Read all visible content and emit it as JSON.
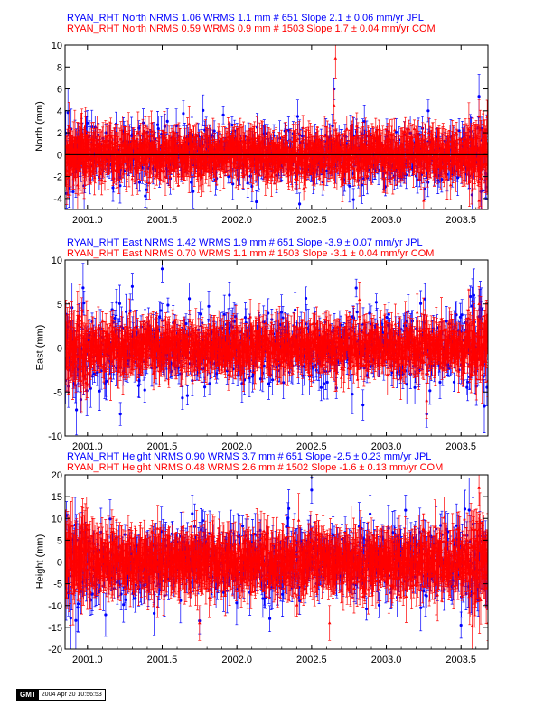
{
  "chart_data": [
    {
      "type": "scatter",
      "title_lines": [
        {
          "text": "RYAN_RHT North NRMS 1.06 WRMS  1.1 mm # 651 Slope    2.1 ±  0.06 mm/yr JPL",
          "color": "#0000ff"
        },
        {
          "text": "RYAN_RHT North NRMS 0.59 WRMS  0.9 mm # 1503 Slope    1.7 ±  0.04 mm/yr COM",
          "color": "#ff0000"
        }
      ],
      "ylabel": "North (mm)",
      "xlim": [
        2000.85,
        2003.68
      ],
      "ylim": [
        -5,
        10
      ],
      "xticks": [
        2001.0,
        2001.5,
        2002.0,
        2002.5,
        2003.0,
        2003.5
      ],
      "xtick_labels": [
        "2001.0",
        "2001.5",
        "2002.0",
        "2002.5",
        "2003.0",
        "2003.5"
      ],
      "yticks": [
        -4,
        -2,
        0,
        2,
        4,
        6,
        8,
        10
      ],
      "ytick_labels": [
        "-4",
        "-2",
        "0",
        "2",
        "4",
        "6",
        "8",
        "10"
      ],
      "zero_line": true,
      "series": [
        {
          "name": "JPL",
          "color": "#0000ff",
          "marker": "circle",
          "n": 651,
          "spread": 1.3,
          "err": 1.2,
          "x_range": [
            2000.85,
            2003.68
          ],
          "outliers": [
            [
              2002.65,
              6.0,
              1.0
            ],
            [
              2002.42,
              -4.5,
              1.0
            ],
            [
              2003.28,
              4.0,
              1.0
            ],
            [
              2002.13,
              -4.3,
              1.0
            ],
            [
              2002.78,
              -4.1,
              1.0
            ]
          ]
        },
        {
          "name": "COM",
          "color": "#ff0000",
          "marker": "triangle",
          "n": 1503,
          "spread": 0.9,
          "err": 1.4,
          "x_range": [
            2000.85,
            2003.68
          ],
          "outliers": [
            [
              2002.66,
              8.8,
              1.8
            ],
            [
              2002.65,
              4.5,
              1.6
            ],
            [
              2003.25,
              -4.2,
              1.2
            ],
            [
              2003.62,
              3.5,
              1.5
            ],
            [
              2003.62,
              -4.2,
              1.5
            ]
          ]
        }
      ]
    },
    {
      "type": "scatter",
      "title_lines": [
        {
          "text": "RYAN_RHT East NRMS 1.42 WRMS  1.9 mm # 651 Slope   -3.9 ±  0.07 mm/yr JPL",
          "color": "#0000ff"
        },
        {
          "text": "RYAN_RHT East NRMS 0.70 WRMS  1.1 mm # 1503 Slope   -3.1 ±  0.04 mm/yr COM",
          "color": "#ff0000"
        }
      ],
      "ylabel": "East (mm)",
      "xlim": [
        2000.85,
        2003.68
      ],
      "ylim": [
        -10,
        10
      ],
      "xticks": [
        2001.0,
        2001.5,
        2002.0,
        2002.5,
        2003.0,
        2003.5
      ],
      "xtick_labels": [
        "2001.0",
        "2001.5",
        "2002.0",
        "2002.5",
        "2003.0",
        "2003.5"
      ],
      "yticks": [
        -10,
        -5,
        0,
        5,
        10
      ],
      "ytick_labels": [
        "-10",
        "-5",
        "0",
        "5",
        "10"
      ],
      "zero_line": true,
      "series": [
        {
          "name": "JPL",
          "color": "#0000ff",
          "marker": "circle",
          "n": 651,
          "spread": 2.2,
          "err": 1.6,
          "x_range": [
            2000.85,
            2003.68
          ],
          "outliers": [
            [
              2001.5,
              9.0,
              1.5
            ],
            [
              2001.22,
              -7.5,
              1.3
            ],
            [
              2001.3,
              7.0,
              1.5
            ],
            [
              2001.95,
              6.0,
              1.5
            ],
            [
              2003.27,
              -7.5,
              1.5
            ]
          ]
        },
        {
          "name": "COM",
          "color": "#ff0000",
          "marker": "triangle",
          "n": 1503,
          "spread": 1.2,
          "err": 1.8,
          "x_range": [
            2000.85,
            2003.68
          ],
          "outliers": [
            [
              2002.82,
              5.5,
              2.0
            ],
            [
              2003.27,
              -6.0,
              2.0
            ],
            [
              2003.62,
              5.0,
              2.0
            ]
          ]
        }
      ]
    },
    {
      "type": "scatter",
      "title_lines": [
        {
          "text": "RYAN_RHT Height NRMS 0.90 WRMS  3.7 mm # 651 Slope  -2.5 ±  0.23 mm/yr JPL",
          "color": "#0000ff"
        },
        {
          "text": "RYAN_RHT Height NRMS 0.48 WRMS  2.6 mm # 1502 Slope  -1.6 ±  0.13 mm/yr COM",
          "color": "#ff0000"
        }
      ],
      "ylabel": "Height (mm)",
      "xlim": [
        2000.85,
        2003.68
      ],
      "ylim": [
        -20,
        20
      ],
      "xticks": [
        2001.0,
        2001.5,
        2002.0,
        2002.5,
        2003.0,
        2003.5
      ],
      "xtick_labels": [
        "2001.0",
        "2001.5",
        "2002.0",
        "2002.5",
        "2003.0",
        "2003.5"
      ],
      "yticks": [
        -20,
        -15,
        -10,
        -5,
        0,
        5,
        10,
        15,
        20
      ],
      "ytick_labels": [
        "-20",
        "-15",
        "-10",
        "-5",
        "0",
        "5",
        "10",
        "15",
        "20"
      ],
      "zero_line": true,
      "series": [
        {
          "name": "JPL",
          "color": "#0000ff",
          "marker": "circle",
          "n": 651,
          "spread": 4.0,
          "err": 4.0,
          "x_range": [
            2000.85,
            2003.68
          ],
          "outliers": [
            [
              2002.5,
              16.5,
              3.0
            ],
            [
              2002.22,
              -13.0,
              3.0
            ],
            [
              2003.5,
              -14.5,
              3.0
            ],
            [
              2001.75,
              -13.5,
              3.0
            ]
          ]
        },
        {
          "name": "COM",
          "color": "#ff0000",
          "marker": "triangle",
          "n": 1502,
          "spread": 2.8,
          "err": 4.5,
          "x_range": [
            2000.85,
            2003.68
          ],
          "outliers": [
            [
              2003.62,
              17.0,
              4.0
            ],
            [
              2002.62,
              -14.0,
              4.0
            ],
            [
              2003.68,
              -14.0,
              4.0
            ],
            [
              2001.75,
              -14.0,
              4.0
            ]
          ]
        }
      ]
    }
  ],
  "footer": {
    "logo": "GMT",
    "timestamp": "2004 Apr 20 10:56:53"
  }
}
